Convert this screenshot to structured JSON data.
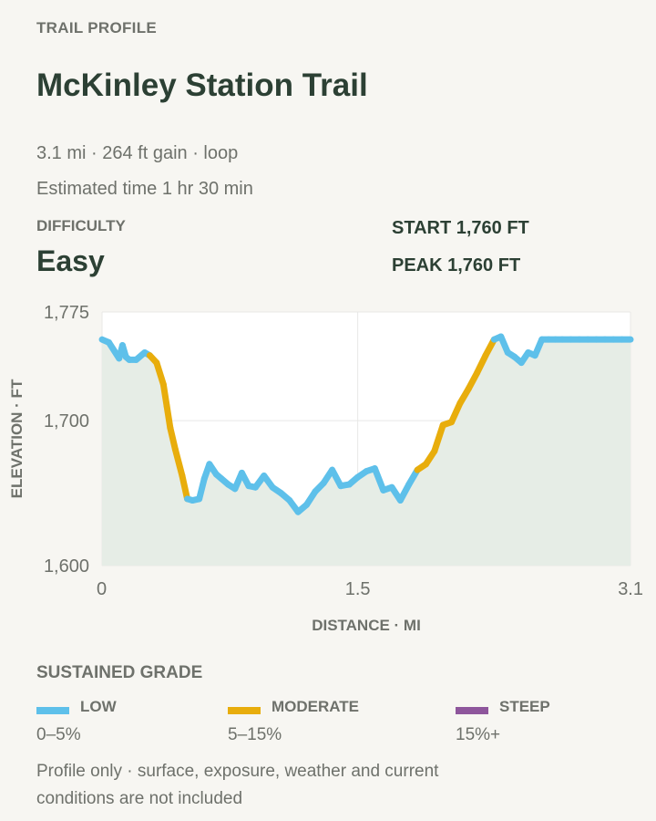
{
  "header": {
    "eyebrow": "TRAIL PROFILE",
    "title": "McKinley Station Trail",
    "meta_line": "3.1 mi · 264 ft gain · loop",
    "time_line": "Estimated time 1 hr 30 min"
  },
  "difficulty": {
    "label": "DIFFICULTY",
    "value": "Easy"
  },
  "stats": {
    "start": "START 1,760 FT",
    "peak": "PEAK 1,760 FT"
  },
  "legend": {
    "title": "SUSTAINED GRADE",
    "items": [
      {
        "name": "LOW",
        "range": "0–5%",
        "color": "#5ec0ea"
      },
      {
        "name": "MODERATE",
        "range": "5–15%",
        "color": "#e8ad0c"
      },
      {
        "name": "STEEP",
        "range": "15%+",
        "color": "#8e569c"
      }
    ]
  },
  "footnote": "Profile only · surface, exposure, weather and current conditions are not included",
  "chart_data": {
    "type": "line",
    "xlabel": "DISTANCE · MI",
    "ylabel": "ELEVATION · FT",
    "xlim": [
      0,
      3.1
    ],
    "ylim": [
      1600,
      1775
    ],
    "x_ticks": [
      "0",
      "1.5",
      "3.1"
    ],
    "y_ticks": [
      "1,600",
      "1,700",
      "1,775"
    ],
    "fill_color": "#e6ede6",
    "grid": true,
    "series": [
      {
        "x": [
          0,
          0.04,
          0.1,
          0.12,
          0.14,
          0.16,
          0.2,
          0.25,
          0.28,
          0.32,
          0.36,
          0.38,
          0.4,
          0.43,
          0.47,
          0.5,
          0.53,
          0.57,
          0.6,
          0.63,
          0.67,
          0.7,
          0.74,
          0.78,
          0.82,
          0.86,
          0.9,
          0.95,
          1.0,
          1.05,
          1.1,
          1.15,
          1.2,
          1.25,
          1.3,
          1.35,
          1.4,
          1.45,
          1.5,
          1.55,
          1.6,
          1.65,
          1.7,
          1.75,
          1.8,
          1.85,
          1.9,
          1.95,
          2.0,
          2.05,
          2.1,
          2.15,
          2.2,
          2.25,
          2.3,
          2.34,
          2.38,
          2.42,
          2.46,
          2.5,
          2.54,
          2.58,
          2.62,
          2.66,
          2.7,
          2.75,
          2.8,
          2.85,
          2.9,
          2.95,
          3.0,
          3.05,
          3.1
        ],
        "y": [
          1756,
          1754,
          1743,
          1752,
          1744,
          1742,
          1742,
          1747,
          1745,
          1740,
          1725,
          1710,
          1695,
          1680,
          1662,
          1646,
          1645,
          1646,
          1660,
          1670,
          1663,
          1660,
          1656,
          1653,
          1664,
          1655,
          1654,
          1662,
          1654,
          1650,
          1645,
          1637,
          1642,
          1651,
          1657,
          1666,
          1655,
          1656,
          1661,
          1665,
          1667,
          1652,
          1654,
          1645,
          1656,
          1666,
          1670,
          1679,
          1697,
          1699,
          1712,
          1722,
          1733,
          1745,
          1756,
          1758,
          1747,
          1744,
          1740,
          1747,
          1745,
          1756,
          1756,
          1756,
          1756,
          1756,
          1756,
          1756,
          1756,
          1756,
          1756,
          1756,
          1756
        ],
        "grade": [
          "low",
          "low",
          "low",
          "low",
          "low",
          "low",
          "low",
          "low",
          "low",
          "moderate",
          "moderate",
          "moderate",
          "moderate",
          "moderate",
          "moderate",
          "moderate",
          "low",
          "low",
          "low",
          "low",
          "low",
          "low",
          "low",
          "low",
          "low",
          "low",
          "low",
          "low",
          "low",
          "low",
          "low",
          "low",
          "low",
          "low",
          "low",
          "low",
          "low",
          "low",
          "low",
          "low",
          "low",
          "low",
          "low",
          "low",
          "low",
          "low",
          "moderate",
          "moderate",
          "moderate",
          "moderate",
          "moderate",
          "moderate",
          "moderate",
          "moderate",
          "moderate",
          "low",
          "low",
          "low",
          "low",
          "low",
          "low",
          "low",
          "low",
          "low",
          "low",
          "low",
          "low",
          "low",
          "low",
          "low",
          "low",
          "low",
          "low"
        ]
      }
    ]
  }
}
